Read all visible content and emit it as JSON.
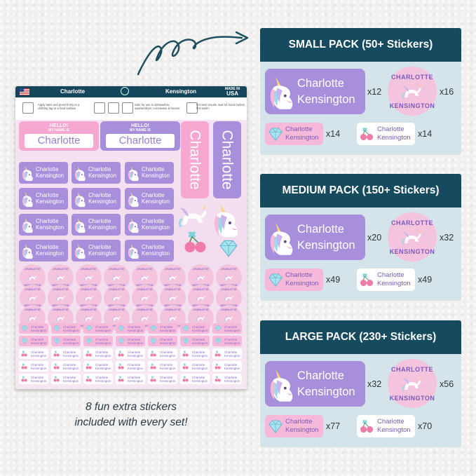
{
  "sheet": {
    "first_name": "Charlotte",
    "last_name": "Kensington",
    "made_in": "MADE IN",
    "made_in_country": "USA",
    "info_apply": "Apply label and press firmly to a clothing tag or a hard surface.",
    "info_safe": "Safe for use in dishwasher, washer/dryer, microwave & freezer.",
    "info_best": "For best results, wait 24 hours before first wash.",
    "hello_line1": "HELLO!",
    "hello_line2": "MY NAME IS",
    "round_top": "CHARLOTTE",
    "round_bottom": "KENSINGTON"
  },
  "caption": {
    "line1": "8 fun extra stickers",
    "line2": "included with every set!"
  },
  "packs": [
    {
      "title": "SMALL PACK (50+ Stickers)",
      "label_qty": "x12",
      "round_qty": "x16",
      "gem_qty": "x14",
      "cherry_qty": "x14"
    },
    {
      "title": "MEDIUM PACK (150+ Stickers)",
      "label_qty": "x20",
      "round_qty": "x32",
      "gem_qty": "x49",
      "cherry_qty": "x49"
    },
    {
      "title": "LARGE PACK (230+ Stickers)",
      "label_qty": "x32",
      "round_qty": "x56",
      "gem_qty": "x77",
      "cherry_qty": "x70"
    }
  ],
  "pack_labels": {
    "first": "Charlotte",
    "last": "Kensington",
    "round_top": "CHARLOTTE",
    "round_bottom": "KENSINGTON"
  },
  "colors": {
    "navy": "#164a5e",
    "panel": "#d4e4ea",
    "lavender": "#a88fdc",
    "pink": "#f7b9d9",
    "round_pink": "#f4c4df"
  },
  "icons": [
    "unicorn-icon",
    "pegasus-icon",
    "diamond-icon",
    "cherry-bow-icon",
    "usa-flag-icon",
    "curly-arrow-icon"
  ]
}
